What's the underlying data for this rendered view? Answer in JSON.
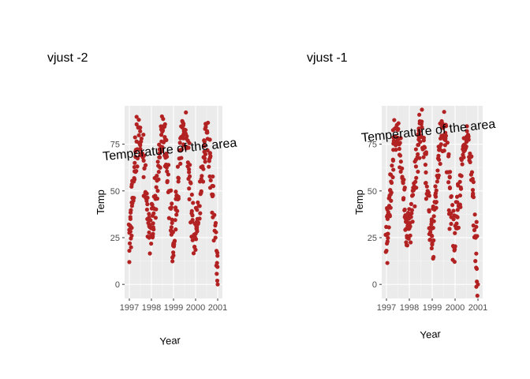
{
  "chart_data": [
    {
      "type": "scatter",
      "title": "vjust -2",
      "xlabel": "Year",
      "ylabel": "Temp",
      "xlim": [
        1997,
        2001
      ],
      "ylim": [
        -5,
        93
      ],
      "x_ticks": [
        "1997",
        "1998",
        "1999",
        "2000",
        "2001"
      ],
      "y_ticks": [
        "0",
        "25",
        "50",
        "75"
      ],
      "grid": true,
      "point_color": "#b22222",
      "annotation": {
        "text": "Temperature of the area",
        "x": 1998.85,
        "y": 70
      },
      "series": [
        {
          "values": [
            [
              1997.0,
              18
            ],
            [
              1997.05,
              35
            ],
            [
              1997.12,
              42
            ],
            [
              1997.2,
              55
            ],
            [
              1997.3,
              72
            ],
            [
              1997.42,
              84
            ],
            [
              1997.55,
              78
            ],
            [
              1997.68,
              62
            ],
            [
              1997.8,
              40
            ],
            [
              1997.9,
              25
            ],
            [
              1998.0,
              30
            ],
            [
              1998.1,
              38
            ],
            [
              1998.22,
              52
            ],
            [
              1998.35,
              68
            ],
            [
              1998.45,
              80
            ],
            [
              1998.55,
              84
            ],
            [
              1998.68,
              70
            ],
            [
              1998.8,
              50
            ],
            [
              1998.92,
              28
            ],
            [
              1999.0,
              22
            ],
            [
              1999.1,
              40
            ],
            [
              1999.22,
              55
            ],
            [
              1999.35,
              72
            ],
            [
              1999.45,
              86
            ],
            [
              1999.58,
              78
            ],
            [
              1999.7,
              60
            ],
            [
              1999.82,
              38
            ],
            [
              1999.95,
              20
            ],
            [
              2000.05,
              30
            ],
            [
              2000.15,
              42
            ],
            [
              2000.28,
              58
            ],
            [
              2000.4,
              74
            ],
            [
              2000.52,
              82
            ],
            [
              2000.65,
              70
            ],
            [
              2000.78,
              48
            ],
            [
              2000.9,
              25
            ],
            [
              2001.0,
              0
            ]
          ]
        }
      ]
    },
    {
      "type": "scatter",
      "title": "vjust -1",
      "xlabel": "Year",
      "ylabel": "Temp",
      "xlim": [
        1997,
        2001
      ],
      "ylim": [
        -5,
        93
      ],
      "x_ticks": [
        "1997",
        "1998",
        "1999",
        "2000",
        "2001"
      ],
      "y_ticks": [
        "0",
        "25",
        "50",
        "75"
      ],
      "grid": true,
      "point_color": "#b22222",
      "annotation": {
        "text": "Temperature of the area",
        "x": 1998.85,
        "y": 80
      },
      "series": [
        {
          "values": [
            [
              1997.0,
              18
            ],
            [
              1997.05,
              35
            ],
            [
              1997.12,
              42
            ],
            [
              1997.2,
              55
            ],
            [
              1997.3,
              72
            ],
            [
              1997.42,
              84
            ],
            [
              1997.55,
              78
            ],
            [
              1997.68,
              62
            ],
            [
              1997.8,
              40
            ],
            [
              1997.9,
              25
            ],
            [
              1998.0,
              30
            ],
            [
              1998.1,
              38
            ],
            [
              1998.22,
              52
            ],
            [
              1998.35,
              68
            ],
            [
              1998.45,
              80
            ],
            [
              1998.55,
              84
            ],
            [
              1998.68,
              70
            ],
            [
              1998.8,
              50
            ],
            [
              1998.92,
              28
            ],
            [
              1999.0,
              22
            ],
            [
              1999.1,
              40
            ],
            [
              1999.22,
              55
            ],
            [
              1999.35,
              72
            ],
            [
              1999.45,
              86
            ],
            [
              1999.58,
              78
            ],
            [
              1999.7,
              60
            ],
            [
              1999.82,
              38
            ],
            [
              1999.95,
              20
            ],
            [
              2000.05,
              30
            ],
            [
              2000.15,
              42
            ],
            [
              2000.28,
              58
            ],
            [
              2000.4,
              74
            ],
            [
              2000.52,
              82
            ],
            [
              2000.65,
              70
            ],
            [
              2000.78,
              48
            ],
            [
              2000.9,
              25
            ],
            [
              2001.0,
              0
            ]
          ]
        }
      ]
    }
  ]
}
